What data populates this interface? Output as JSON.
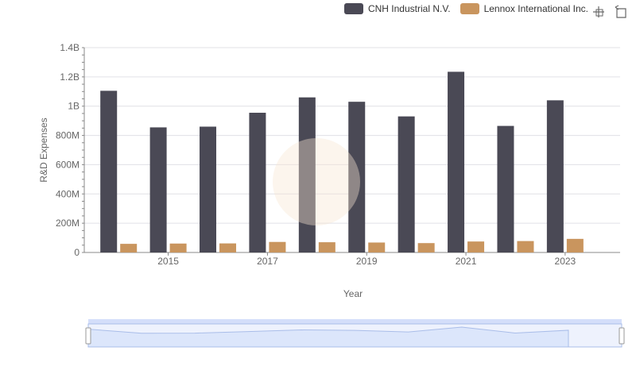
{
  "colors": {
    "cnh": "#4a4955",
    "lennox": "#c9955e",
    "grid": "#e0e0e6",
    "axis": "#666666",
    "zoom_fill": "#dce6fb",
    "zoom_border": "#a9bde9"
  },
  "icons": {
    "zoom": "zoom-crosshair-icon",
    "restore": "restore-icon"
  },
  "chart_data": {
    "type": "bar",
    "xlabel": "Year",
    "ylabel": "R&D Expenses",
    "x_tick_labels": [
      "2015",
      "2017",
      "2019",
      "2021",
      "2023"
    ],
    "y_tick_labels": [
      "0",
      "200M",
      "400M",
      "600M",
      "800M",
      "1B",
      "1.2B",
      "1.4B"
    ],
    "ylim": [
      0,
      1400000000
    ],
    "categories": [
      "2014",
      "2015",
      "2016",
      "2017",
      "2018",
      "2019",
      "2020",
      "2021",
      "2022",
      "2023"
    ],
    "series": [
      {
        "name": "CNH Industrial N.V.",
        "values": [
          1105000000,
          855000000,
          860000000,
          955000000,
          1060000000,
          1030000000,
          930000000,
          1235000000,
          865000000,
          1040000000
        ]
      },
      {
        "name": "Lennox International Inc.",
        "values": [
          59000000,
          61000000,
          62000000,
          72000000,
          70000000,
          68000000,
          64000000,
          75000000,
          78000000,
          93000000
        ]
      }
    ],
    "legend_position": "top-right",
    "grid": true
  }
}
